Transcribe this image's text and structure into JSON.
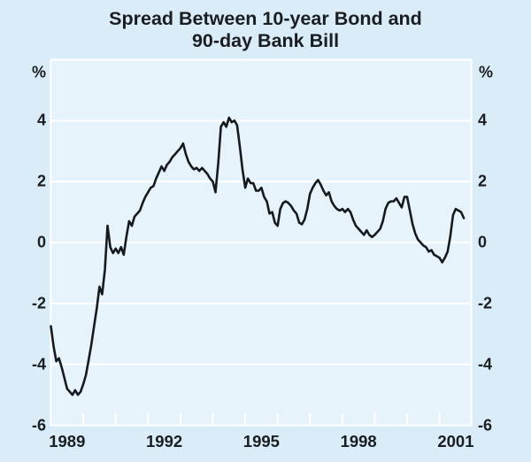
{
  "colors": {
    "background": "#d9ecf7",
    "plot_background": "#e6f3fb",
    "gridline": "#ffffff",
    "series_line": "#161a1d",
    "text": "#1a1d21"
  },
  "chart_data": {
    "type": "line",
    "title_line1": "Spread Between 10-year Bond and",
    "title_line2": "90-day Bank Bill",
    "unit_label_left": "%",
    "unit_label_right": "%",
    "ylim": [
      -6,
      6
    ],
    "ytick_labels": [
      4,
      2,
      0,
      -2,
      -4,
      -6
    ],
    "gridline_values": [
      4,
      2,
      0,
      -2,
      -4
    ],
    "grid": "on",
    "x_start": 1989,
    "x_end": 2001.98,
    "x_year_tick_marks": [
      1990,
      1991,
      1992,
      1993,
      1994,
      1995,
      1996,
      1997,
      1998,
      1999,
      2000,
      2001
    ],
    "x_year_labels": [
      1989,
      1992,
      1995,
      1998,
      2001
    ],
    "legend": "none",
    "series": [
      {
        "name": "Spread between 10-year bond and 90-day bank bill",
        "unit": "percentage points",
        "frequency": "monthly",
        "points": [
          [
            1989.0,
            -2.75
          ],
          [
            1989.083,
            -3.4
          ],
          [
            1989.167,
            -3.9
          ],
          [
            1989.25,
            -3.8
          ],
          [
            1989.333,
            -4.1
          ],
          [
            1989.417,
            -4.45
          ],
          [
            1989.5,
            -4.8
          ],
          [
            1989.583,
            -4.9
          ],
          [
            1989.667,
            -5.0
          ],
          [
            1989.75,
            -4.85
          ],
          [
            1989.833,
            -5.0
          ],
          [
            1989.917,
            -4.9
          ],
          [
            1990.0,
            -4.65
          ],
          [
            1990.083,
            -4.35
          ],
          [
            1990.167,
            -3.85
          ],
          [
            1990.25,
            -3.35
          ],
          [
            1990.333,
            -2.75
          ],
          [
            1990.417,
            -2.15
          ],
          [
            1990.5,
            -1.45
          ],
          [
            1990.583,
            -1.7
          ],
          [
            1990.667,
            -0.9
          ],
          [
            1990.75,
            0.55
          ],
          [
            1990.833,
            -0.15
          ],
          [
            1990.917,
            -0.35
          ],
          [
            1991.0,
            -0.2
          ],
          [
            1991.083,
            -0.35
          ],
          [
            1991.167,
            -0.15
          ],
          [
            1991.25,
            -0.4
          ],
          [
            1991.333,
            0.2
          ],
          [
            1991.417,
            0.7
          ],
          [
            1991.5,
            0.55
          ],
          [
            1991.583,
            0.85
          ],
          [
            1991.667,
            0.95
          ],
          [
            1991.75,
            1.05
          ],
          [
            1991.833,
            1.3
          ],
          [
            1991.917,
            1.5
          ],
          [
            1992.0,
            1.65
          ],
          [
            1992.083,
            1.8
          ],
          [
            1992.167,
            1.85
          ],
          [
            1992.25,
            2.1
          ],
          [
            1992.333,
            2.3
          ],
          [
            1992.417,
            2.5
          ],
          [
            1992.5,
            2.35
          ],
          [
            1992.583,
            2.55
          ],
          [
            1992.667,
            2.65
          ],
          [
            1992.75,
            2.8
          ],
          [
            1992.833,
            2.9
          ],
          [
            1992.917,
            3.0
          ],
          [
            1993.0,
            3.1
          ],
          [
            1993.083,
            3.25
          ],
          [
            1993.167,
            2.9
          ],
          [
            1993.25,
            2.65
          ],
          [
            1993.333,
            2.5
          ],
          [
            1993.417,
            2.4
          ],
          [
            1993.5,
            2.45
          ],
          [
            1993.583,
            2.35
          ],
          [
            1993.667,
            2.45
          ],
          [
            1993.75,
            2.35
          ],
          [
            1993.833,
            2.25
          ],
          [
            1993.917,
            2.1
          ],
          [
            1994.0,
            2.0
          ],
          [
            1994.083,
            1.65
          ],
          [
            1994.167,
            2.6
          ],
          [
            1994.25,
            3.8
          ],
          [
            1994.333,
            3.95
          ],
          [
            1994.417,
            3.8
          ],
          [
            1994.5,
            4.1
          ],
          [
            1994.583,
            3.95
          ],
          [
            1994.667,
            4.0
          ],
          [
            1994.75,
            3.85
          ],
          [
            1994.833,
            3.15
          ],
          [
            1994.917,
            2.4
          ],
          [
            1995.0,
            1.8
          ],
          [
            1995.083,
            2.1
          ],
          [
            1995.167,
            1.95
          ],
          [
            1995.25,
            1.95
          ],
          [
            1995.333,
            1.7
          ],
          [
            1995.417,
            1.7
          ],
          [
            1995.5,
            1.8
          ],
          [
            1995.583,
            1.5
          ],
          [
            1995.667,
            1.35
          ],
          [
            1995.75,
            0.95
          ],
          [
            1995.833,
            1.0
          ],
          [
            1995.917,
            0.65
          ],
          [
            1996.0,
            0.55
          ],
          [
            1996.083,
            1.1
          ],
          [
            1996.167,
            1.3
          ],
          [
            1996.25,
            1.35
          ],
          [
            1996.333,
            1.3
          ],
          [
            1996.417,
            1.2
          ],
          [
            1996.5,
            1.05
          ],
          [
            1996.583,
            0.95
          ],
          [
            1996.667,
            0.65
          ],
          [
            1996.75,
            0.6
          ],
          [
            1996.833,
            0.75
          ],
          [
            1996.917,
            1.1
          ],
          [
            1997.0,
            1.6
          ],
          [
            1997.083,
            1.8
          ],
          [
            1997.167,
            1.95
          ],
          [
            1997.25,
            2.05
          ],
          [
            1997.333,
            1.9
          ],
          [
            1997.417,
            1.7
          ],
          [
            1997.5,
            1.55
          ],
          [
            1997.583,
            1.65
          ],
          [
            1997.667,
            1.35
          ],
          [
            1997.75,
            1.2
          ],
          [
            1997.833,
            1.1
          ],
          [
            1997.917,
            1.05
          ],
          [
            1998.0,
            1.1
          ],
          [
            1998.083,
            1.0
          ],
          [
            1998.167,
            1.1
          ],
          [
            1998.25,
            1.0
          ],
          [
            1998.333,
            0.75
          ],
          [
            1998.417,
            0.55
          ],
          [
            1998.5,
            0.45
          ],
          [
            1998.583,
            0.35
          ],
          [
            1998.667,
            0.25
          ],
          [
            1998.75,
            0.4
          ],
          [
            1998.833,
            0.25
          ],
          [
            1998.917,
            0.18
          ],
          [
            1999.0,
            0.25
          ],
          [
            1999.083,
            0.35
          ],
          [
            1999.167,
            0.45
          ],
          [
            1999.25,
            0.7
          ],
          [
            1999.333,
            1.1
          ],
          [
            1999.417,
            1.3
          ],
          [
            1999.5,
            1.35
          ],
          [
            1999.583,
            1.35
          ],
          [
            1999.667,
            1.45
          ],
          [
            1999.75,
            1.3
          ],
          [
            1999.833,
            1.15
          ],
          [
            1999.917,
            1.5
          ],
          [
            2000.0,
            1.5
          ],
          [
            2000.083,
            1.05
          ],
          [
            2000.167,
            0.6
          ],
          [
            2000.25,
            0.3
          ],
          [
            2000.333,
            0.1
          ],
          [
            2000.417,
            0.0
          ],
          [
            2000.5,
            -0.1
          ],
          [
            2000.583,
            -0.15
          ],
          [
            2000.667,
            -0.3
          ],
          [
            2000.75,
            -0.25
          ],
          [
            2000.833,
            -0.4
          ],
          [
            2000.917,
            -0.45
          ],
          [
            2001.0,
            -0.5
          ],
          [
            2001.083,
            -0.65
          ],
          [
            2001.167,
            -0.5
          ],
          [
            2001.25,
            -0.3
          ],
          [
            2001.333,
            0.2
          ],
          [
            2001.417,
            0.9
          ],
          [
            2001.5,
            1.1
          ],
          [
            2001.583,
            1.05
          ],
          [
            2001.667,
            1.0
          ],
          [
            2001.75,
            0.8
          ]
        ]
      }
    ]
  }
}
